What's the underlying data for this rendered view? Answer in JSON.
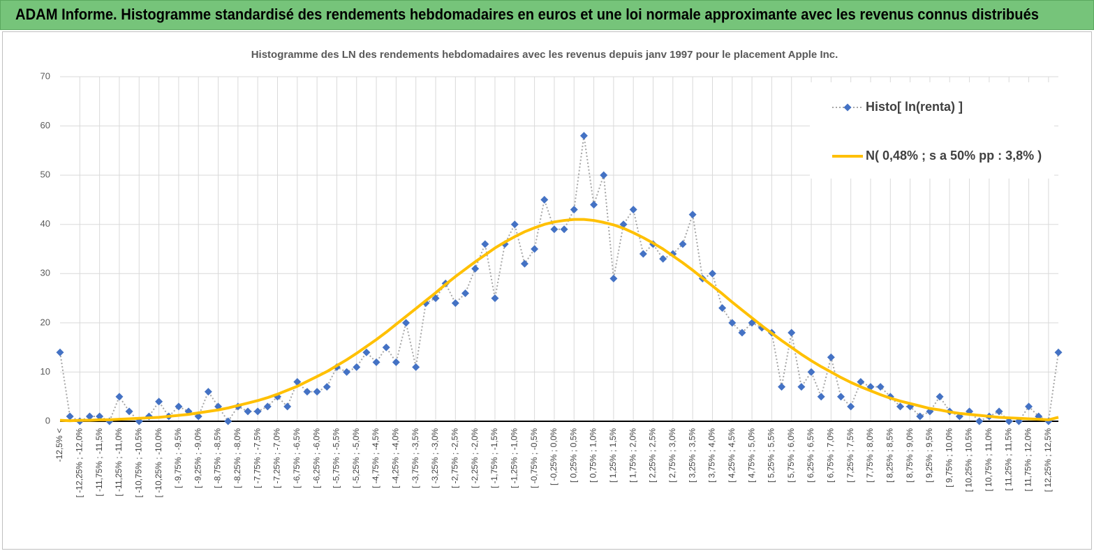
{
  "chart_data": {
    "type": "line",
    "title": "ADAM Informe. Histogramme standardisé des rendements hebdomadaires en euros et une loi normale approximante avec les revenus connus distribués",
    "subtitle": "Histogramme des LN des rendements hebdomadaires avec les revenus depuis janv 1997 pour le placement Apple Inc.",
    "categories": [
      "-12,5% <",
      null,
      "[ -12,25% ; -12,0%",
      null,
      "[ -11,75% ; -11,5%",
      null,
      "[ -11,25% ; -11,0%",
      null,
      "[ -10,75% ; -10,5%",
      null,
      "[ -10,25% ; -10,0%",
      null,
      "[ -9,75% ; -9,5%",
      null,
      "[ -9,25% ; -9,0%",
      null,
      "[ -8,75% ; -8,5%",
      null,
      "[ -8,25% ; -8,0%",
      null,
      "[ -7,75% ; -7,5%",
      null,
      "[ -7,25% ; -7,0%",
      null,
      "[ -6,75% ; -6,5%",
      null,
      "[ -6,25% ; -6,0%",
      null,
      "[ -5,75% ; -5,5%",
      null,
      "[ -5,25% ; -5,0%",
      null,
      "[ -4,75% ; -4,5%",
      null,
      "[ -4,25% ; -4,0%",
      null,
      "[ -3,75% ; -3,5%",
      null,
      "[ -3,25% ; -3,0%",
      null,
      "[ -2,75% ; -2,5%",
      null,
      "[ -2,25% ; -2,0%",
      null,
      "[ -1,75% ; -1,5%",
      null,
      "[ -1,25% ; -1,0%",
      null,
      "[ -0,75% ; -0,5%",
      null,
      "[ -0,25% ; 0,0%",
      null,
      "[ 0,25% ; 0,5%",
      null,
      "[ 0,75% ; 1,0%",
      null,
      "[ 1,25% ; 1,5%",
      null,
      "[ 1,75% ; 2,0%",
      null,
      "[ 2,25% ; 2,5%",
      null,
      "[ 2,75% ; 3,0%",
      null,
      "[ 3,25% ; 3,5%",
      null,
      "[ 3,75% ; 4,0%",
      null,
      "[ 4,25% ; 4,5%",
      null,
      "[ 4,75% ; 5,0%",
      null,
      "[ 5,25% ; 5,5%",
      null,
      "[ 5,75% ; 6,0%",
      null,
      "[ 6,25% ; 6,5%",
      null,
      "[ 6,75% ; 7,0%",
      null,
      "[ 7,25% ; 7,5%",
      null,
      "[ 7,75% ; 8,0%",
      null,
      "[ 8,25% ; 8,5%",
      null,
      "[ 8,75% ; 9,0%",
      null,
      "[ 9,25% ; 9,5%",
      null,
      "[ 9,75% ; 10,0%",
      null,
      "[ 10,25% ; 10,5%",
      null,
      "[ 10,75% ; 11,0%",
      null,
      "[ 11,25% ; 11,5%",
      null,
      "[ 11,75% ; 12,0%",
      null,
      "[ 12,25% ; 12,5%",
      null
    ],
    "series": [
      {
        "name": "Histo[ ln(renta) ]",
        "color": "#4472c4",
        "marker": "diamond",
        "line_style": "dotted",
        "line_color": "#a6a6a6",
        "values": [
          14,
          1,
          0,
          1,
          1,
          0,
          5,
          2,
          0,
          1,
          4,
          1,
          3,
          2,
          1,
          6,
          3,
          0,
          3,
          2,
          2,
          3,
          5,
          3,
          8,
          6,
          6,
          7,
          11,
          10,
          11,
          14,
          12,
          15,
          12,
          20,
          11,
          24,
          25,
          28,
          24,
          26,
          31,
          36,
          25,
          36,
          40,
          32,
          35,
          45,
          39,
          39,
          43,
          58,
          44,
          50,
          29,
          40,
          43,
          34,
          36,
          33,
          34,
          36,
          42,
          29,
          30,
          23,
          20,
          18,
          20,
          19,
          18,
          7,
          18,
          7,
          10,
          5,
          13,
          5,
          3,
          8,
          7,
          7,
          5,
          3,
          3,
          1,
          2,
          5,
          2,
          1,
          2,
          0,
          1,
          2,
          0,
          0,
          3,
          1,
          0,
          14
        ]
      },
      {
        "name": "N( 0,48% ; s a 50% pp : 3,8% )",
        "color": "#ffc000",
        "marker": "none",
        "line_style": "solid",
        "values": [
          0.2,
          0.1,
          0.2,
          0.2,
          0.3,
          0.3,
          0.4,
          0.5,
          0.6,
          0.7,
          0.8,
          1.0,
          1.2,
          1.4,
          1.7,
          2.0,
          2.3,
          2.7,
          3.2,
          3.7,
          4.2,
          4.8,
          5.5,
          6.3,
          7.1,
          8.1,
          9.1,
          10.1,
          11.3,
          12.5,
          13.8,
          15.2,
          16.6,
          18.1,
          19.7,
          21.3,
          22.9,
          24.5,
          26.1,
          27.8,
          29.4,
          30.9,
          32.4,
          33.8,
          35.2,
          36.4,
          37.5,
          38.5,
          39.3,
          40.0,
          40.5,
          40.8,
          41.0,
          41.0,
          40.8,
          40.4,
          39.9,
          39.2,
          38.3,
          37.3,
          36.2,
          35.0,
          33.6,
          32.2,
          30.7,
          29.1,
          27.5,
          25.9,
          24.2,
          22.6,
          21.0,
          19.4,
          17.9,
          16.4,
          15.0,
          13.6,
          12.3,
          11.1,
          10.0,
          8.9,
          7.9,
          7.0,
          6.2,
          5.4,
          4.7,
          4.1,
          3.6,
          3.1,
          2.6,
          2.3,
          1.9,
          1.6,
          1.4,
          1.2,
          1.0,
          0.8,
          0.7,
          0.6,
          0.5,
          0.4,
          0.3,
          0.8
        ]
      }
    ],
    "ylim": [
      0,
      70
    ],
    "yticks": [
      0,
      10,
      20,
      30,
      40,
      50,
      60,
      70
    ],
    "grid": true,
    "legend": "top-right"
  }
}
